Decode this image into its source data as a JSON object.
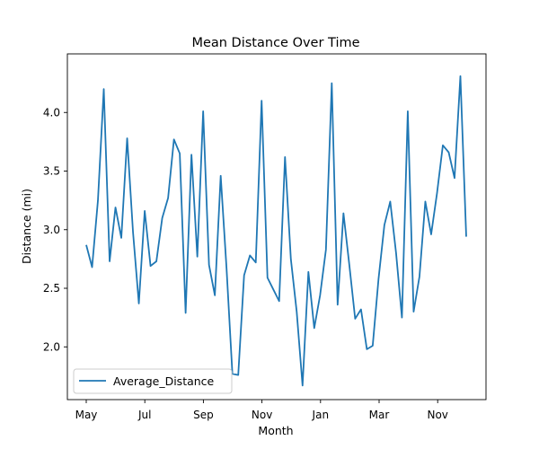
{
  "chart_data": {
    "type": "line",
    "title": "Mean Distance Over Time",
    "xlabel": "Month",
    "ylabel": "Distance (mi)",
    "x_tick_labels": [
      "May",
      "Jul",
      "Sep",
      "Nov",
      "Jan",
      "Mar",
      "Nov"
    ],
    "y_ticks": [
      2.0,
      2.5,
      3.0,
      3.5,
      4.0
    ],
    "y_tick_labels": [
      "2.0",
      "2.5",
      "3.0",
      "3.5",
      "4.0"
    ],
    "ylim": [
      1.55,
      4.5
    ],
    "grid": false,
    "legend_position": "lower-left",
    "series": [
      {
        "name": "Average_Distance",
        "color": "#1f77b4",
        "values": [
          2.87,
          2.68,
          3.25,
          4.2,
          2.73,
          3.19,
          2.93,
          3.78,
          2.98,
          2.37,
          3.16,
          2.69,
          2.73,
          3.1,
          3.27,
          3.77,
          3.65,
          2.29,
          3.64,
          2.77,
          4.01,
          2.7,
          2.44,
          3.46,
          2.67,
          1.77,
          1.76,
          2.61,
          2.78,
          2.72,
          4.1,
          2.59,
          2.49,
          2.39,
          3.62,
          2.75,
          2.3,
          1.67,
          2.64,
          2.16,
          2.44,
          2.83,
          4.25,
          2.36,
          3.14,
          2.7,
          2.24,
          2.32,
          1.98,
          2.01,
          2.58,
          3.04,
          3.24,
          2.8,
          2.25,
          4.01,
          2.3,
          2.6,
          3.24,
          2.96,
          3.31,
          3.72,
          3.66,
          3.44,
          4.31,
          2.94
        ]
      }
    ]
  }
}
